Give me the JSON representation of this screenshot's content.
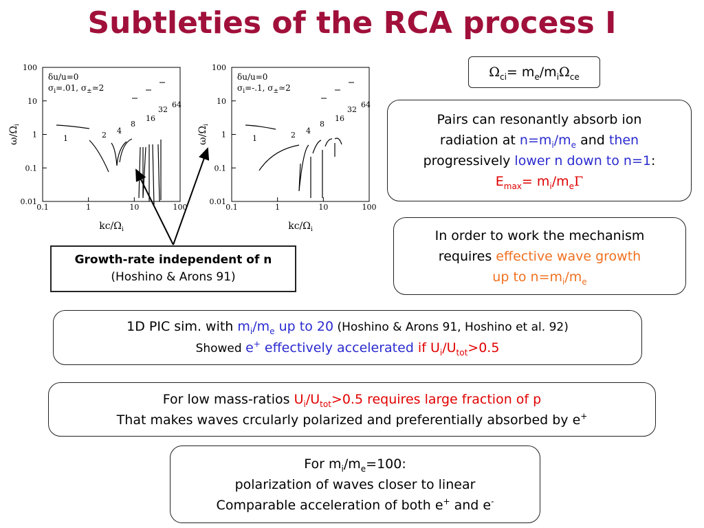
{
  "title": "Subtleties of the RCA process I",
  "figures": [
    {
      "y_label": [
        "ω/Ω",
        "i"
      ],
      "x_label": [
        "kc/Ω",
        "i"
      ],
      "x_ticks": [
        "0.1",
        "1",
        "10",
        "100"
      ],
      "y_ticks": [
        "100",
        "10",
        "1",
        "0.1",
        "0.01"
      ],
      "legend": [
        [
          "δu/u=0"
        ],
        [
          "σ",
          "i",
          "=.01, σ",
          "±",
          "≃2"
        ]
      ],
      "n_labels": [
        "1",
        "2",
        "4",
        "8",
        "16",
        "32",
        "64"
      ]
    },
    {
      "y_label": [
        "ω/Ω",
        "i"
      ],
      "x_label": [
        "kc/Ω",
        "i"
      ],
      "x_ticks": [
        "0.1",
        "1",
        "10",
        "100"
      ],
      "y_ticks": [
        "100",
        "10",
        "1",
        "0.1",
        "0.01"
      ],
      "legend": [
        [
          "δu/u=0"
        ],
        [
          "σ",
          "i",
          "=-.1, σ",
          "±",
          "≃2"
        ]
      ],
      "n_labels": [
        "1",
        "2",
        "4",
        "8",
        "16",
        "32",
        "64"
      ]
    }
  ],
  "boxes": [
    {
      "lines": [
        [
          "Ω",
          "ci",
          "= m",
          "e",
          "/m",
          "i",
          "Ω",
          "ce"
        ]
      ]
    },
    {
      "lines": [
        [
          "Pairs can resonantly absorb ion"
        ],
        [
          "radiation at ",
          "n=m",
          "i",
          "/m",
          "e",
          " and ",
          "then"
        ],
        [
          "progressively ",
          "lower n down to n=1",
          ":"
        ],
        [
          "E",
          "max",
          "= m",
          "i",
          "/m",
          "e",
          "Γ"
        ]
      ]
    },
    {
      "lines": [
        [
          "In order to work the mechanism"
        ],
        [
          "requires ",
          "effective wave growth"
        ],
        [
          "up to n=m",
          "i",
          "/m",
          "e"
        ]
      ]
    },
    {
      "lines": [
        [
          "Growth-rate independent of n"
        ],
        [
          "(Hoshino & Arons 91)"
        ]
      ]
    },
    {
      "lines": [
        [
          "1D PIC sim. with ",
          "m",
          "i",
          "/m",
          "e",
          " up to 20",
          " (Hoshino & Arons 91, Hoshino et al. 92)"
        ],
        [
          "Showed ",
          "e",
          "+",
          " effectively accelerated",
          " if U",
          "i",
          "/U",
          "tot",
          ">0.5"
        ]
      ]
    },
    {
      "lines": [
        [
          "For low mass-ratios ",
          "U",
          "i",
          "/U",
          "tot",
          ">0.5 requires large fraction of p"
        ],
        [
          "That makes waves crcularly polarized and preferentially absorbed by e",
          "+"
        ]
      ]
    },
    {
      "lines": [
        [
          "For m",
          "i",
          "/m",
          "e",
          "=100:"
        ],
        [
          "polarization of waves closer to linear"
        ],
        [
          "Comparable acceleration of both e",
          "+",
          " and e",
          "-"
        ]
      ]
    }
  ]
}
